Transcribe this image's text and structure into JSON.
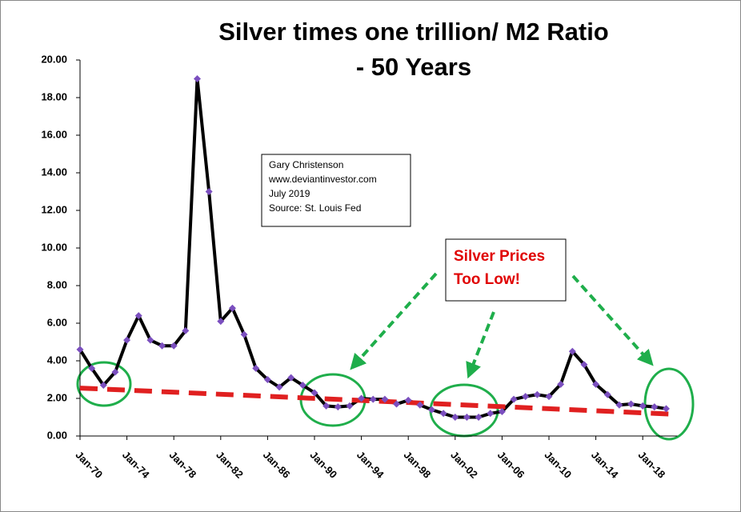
{
  "chart_data": {
    "type": "line",
    "title": "Silver times one trillion/ M2 Ratio",
    "subtitle": "- 50 Years",
    "annotations": [
      "Gary Christenson",
      "www.deviantinvestor.com",
      "July 2019",
      "Source: St. Louis Fed"
    ],
    "callout": [
      "Silver Prices",
      "Too Low!"
    ],
    "categories": [
      "Jan-70",
      null,
      null,
      null,
      "Jan-74",
      null,
      null,
      null,
      "Jan-78",
      null,
      null,
      null,
      "Jan-82",
      null,
      null,
      null,
      "Jan-86",
      null,
      null,
      null,
      "Jan-90",
      null,
      null,
      null,
      "Jan-94",
      null,
      null,
      null,
      "Jan-98",
      null,
      null,
      null,
      "Jan-02",
      null,
      null,
      null,
      "Jan-06",
      null,
      null,
      null,
      "Jan-10",
      null,
      null,
      null,
      "Jan-14",
      null,
      null,
      null,
      "Jan-18",
      null,
      null
    ],
    "series": [
      {
        "color": "#000000",
        "marker_color": "#7b4fbf",
        "values": [
          4.6,
          3.6,
          2.7,
          3.4,
          5.1,
          6.4,
          5.1,
          4.8,
          4.8,
          5.6,
          19.0,
          13.0,
          6.1,
          6.8,
          5.4,
          3.6,
          3.0,
          2.6,
          3.1,
          2.7,
          2.3,
          1.6,
          1.55,
          1.6,
          2.0,
          1.95,
          1.95,
          1.7,
          1.9,
          1.65,
          1.4,
          1.2,
          1.0,
          1.0,
          1.0,
          1.2,
          1.3,
          1.95,
          2.1,
          2.2,
          2.1,
          2.75,
          4.5,
          3.8,
          2.75,
          2.2,
          1.65,
          1.7,
          1.6,
          1.55,
          1.45
        ]
      }
    ],
    "trendline": {
      "color": "#e02020",
      "values": [
        2.55,
        1.15
      ]
    },
    "ylim": [
      0,
      20
    ],
    "yticks": [
      {
        "value": 0,
        "label": "0.00"
      },
      {
        "value": 2,
        "label": "2.00"
      },
      {
        "value": 4,
        "label": "4.00"
      },
      {
        "value": 6,
        "label": "6.00"
      },
      {
        "value": 8,
        "label": "8.00"
      },
      {
        "value": 10,
        "label": "10.00"
      },
      {
        "value": 12,
        "label": "12.00"
      },
      {
        "value": 14,
        "label": "14.00"
      },
      {
        "value": 16,
        "label": "16.00"
      },
      {
        "value": 18,
        "label": "18.00"
      },
      {
        "value": 20,
        "label": "20.00"
      }
    ],
    "grid": false
  }
}
